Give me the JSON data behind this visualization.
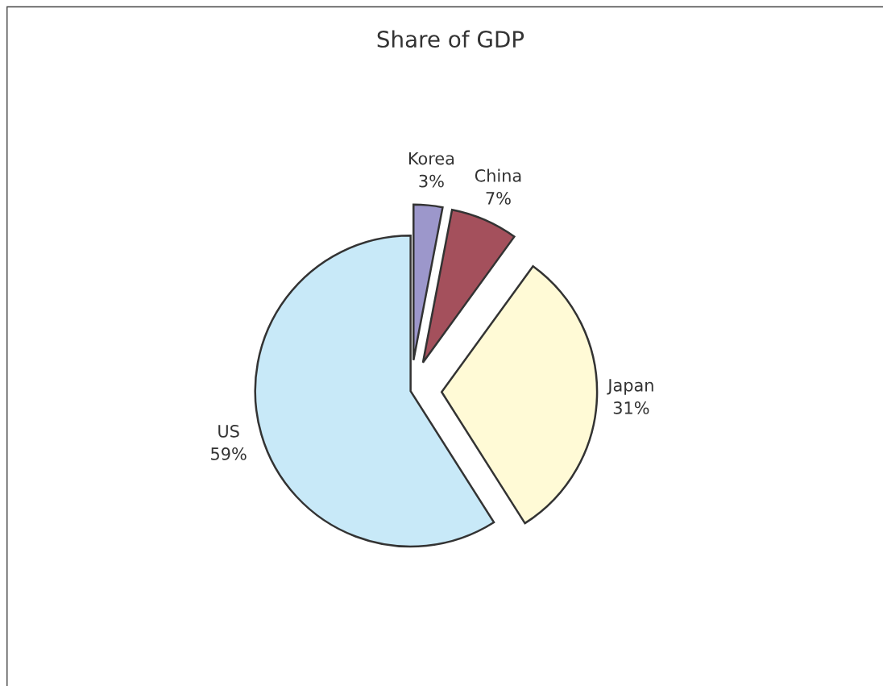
{
  "chart_data": {
    "type": "pie",
    "title": "Share of GDP",
    "categories": [
      "Korea",
      "China",
      "Japan",
      "US"
    ],
    "values": [
      3,
      7,
      31,
      59
    ],
    "colors": [
      "#9c97cb",
      "#a4505c",
      "#fffad6",
      "#c8e9f8"
    ],
    "value_labels": [
      "3%",
      "7%",
      "31%",
      "59%"
    ]
  }
}
